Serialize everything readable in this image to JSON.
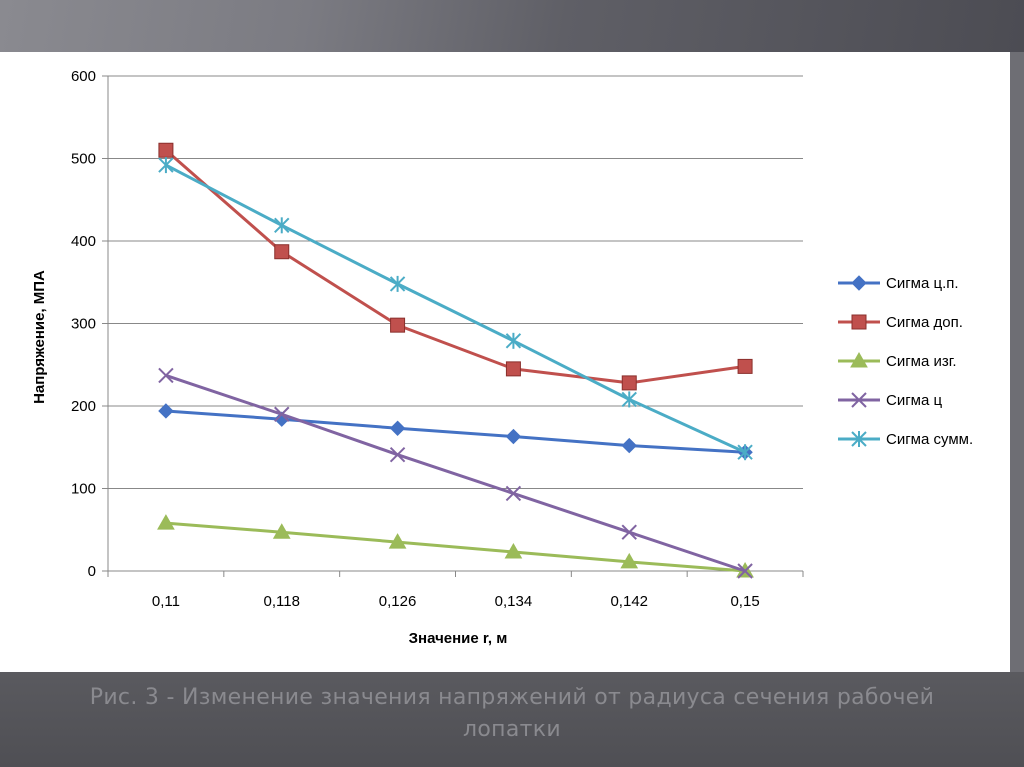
{
  "slide": {
    "caption_line1": "Рис. 3 - Изменение значения напряжений от радиуса сечения рабочей",
    "caption_line2": "лопатки"
  },
  "chart_data": {
    "type": "line",
    "title": "",
    "xlabel": "Значение r, м",
    "ylabel": "Напряжение, МПА",
    "categories": [
      "0,11",
      "0,118",
      "0,126",
      "0,134",
      "0,142",
      "0,15"
    ],
    "ylim": [
      0,
      600
    ],
    "yticks": [
      0,
      100,
      200,
      300,
      400,
      500,
      600
    ],
    "ytick_labels": [
      "0",
      "100",
      "200",
      "300",
      "400",
      "500",
      "600"
    ],
    "grid": true,
    "legend": "right",
    "series": [
      {
        "name": "Сигма ц.п.",
        "color": "#4472c4",
        "marker": "diamond",
        "values": [
          194,
          184,
          173,
          163,
          152,
          144
        ]
      },
      {
        "name": "Сигма доп.",
        "color": "#c0504d",
        "marker": "square",
        "values": [
          510,
          387,
          298,
          245,
          228,
          248
        ]
      },
      {
        "name": "Сигма изг.",
        "color": "#9bbb59",
        "marker": "triangle",
        "values": [
          58,
          47,
          35,
          23,
          11,
          0
        ]
      },
      {
        "name": "Сигма ц",
        "color": "#8064a2",
        "marker": "x",
        "values": [
          237,
          190,
          141,
          94,
          47,
          0
        ]
      },
      {
        "name": "Сигма сумм.",
        "color": "#4bacc6",
        "marker": "star",
        "values": [
          492,
          419,
          348,
          279,
          208,
          144
        ]
      }
    ]
  }
}
